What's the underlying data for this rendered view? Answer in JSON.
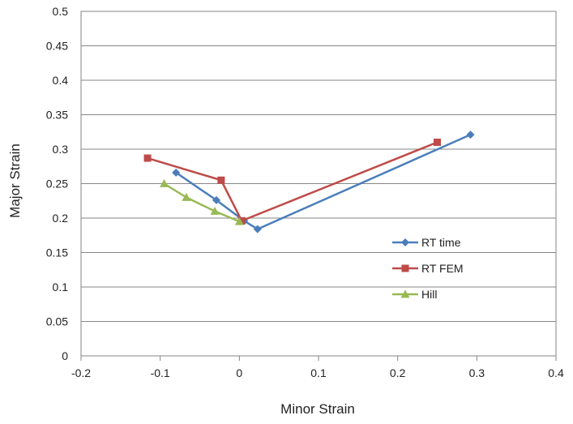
{
  "chart_data": {
    "type": "line",
    "xlabel": "Minor Strain",
    "ylabel": "Major Strain",
    "xlim": [
      -0.2,
      0.4
    ],
    "ylim": [
      0,
      0.5
    ],
    "xticks": [
      "-0.2",
      "-0.1",
      "0",
      "0.1",
      "0.2",
      "0.3",
      "0.4"
    ],
    "yticks": [
      "0",
      "0.05",
      "0.1",
      "0.15",
      "0.2",
      "0.25",
      "0.3",
      "0.35",
      "0.4",
      "0.45",
      "0.5"
    ],
    "grid": true,
    "legend_position": "right",
    "series": [
      {
        "name": "RT time",
        "color": "#4a7ebb",
        "marker": "diamond",
        "points": [
          [
            -0.08,
            0.266
          ],
          [
            -0.029,
            0.226
          ],
          [
            0.006,
            0.196
          ],
          [
            0.023,
            0.184
          ],
          [
            0.292,
            0.321
          ]
        ]
      },
      {
        "name": "RT FEM",
        "color": "#be4b48",
        "marker": "square",
        "points": [
          [
            -0.116,
            0.287
          ],
          [
            -0.023,
            0.255
          ],
          [
            0.003,
            0.196
          ],
          [
            0.25,
            0.31
          ]
        ]
      },
      {
        "name": "Hill",
        "color": "#98b954",
        "marker": "triangle",
        "points": [
          [
            -0.095,
            0.25
          ],
          [
            -0.067,
            0.23
          ],
          [
            -0.031,
            0.21
          ],
          [
            0.0,
            0.195
          ]
        ]
      }
    ]
  }
}
